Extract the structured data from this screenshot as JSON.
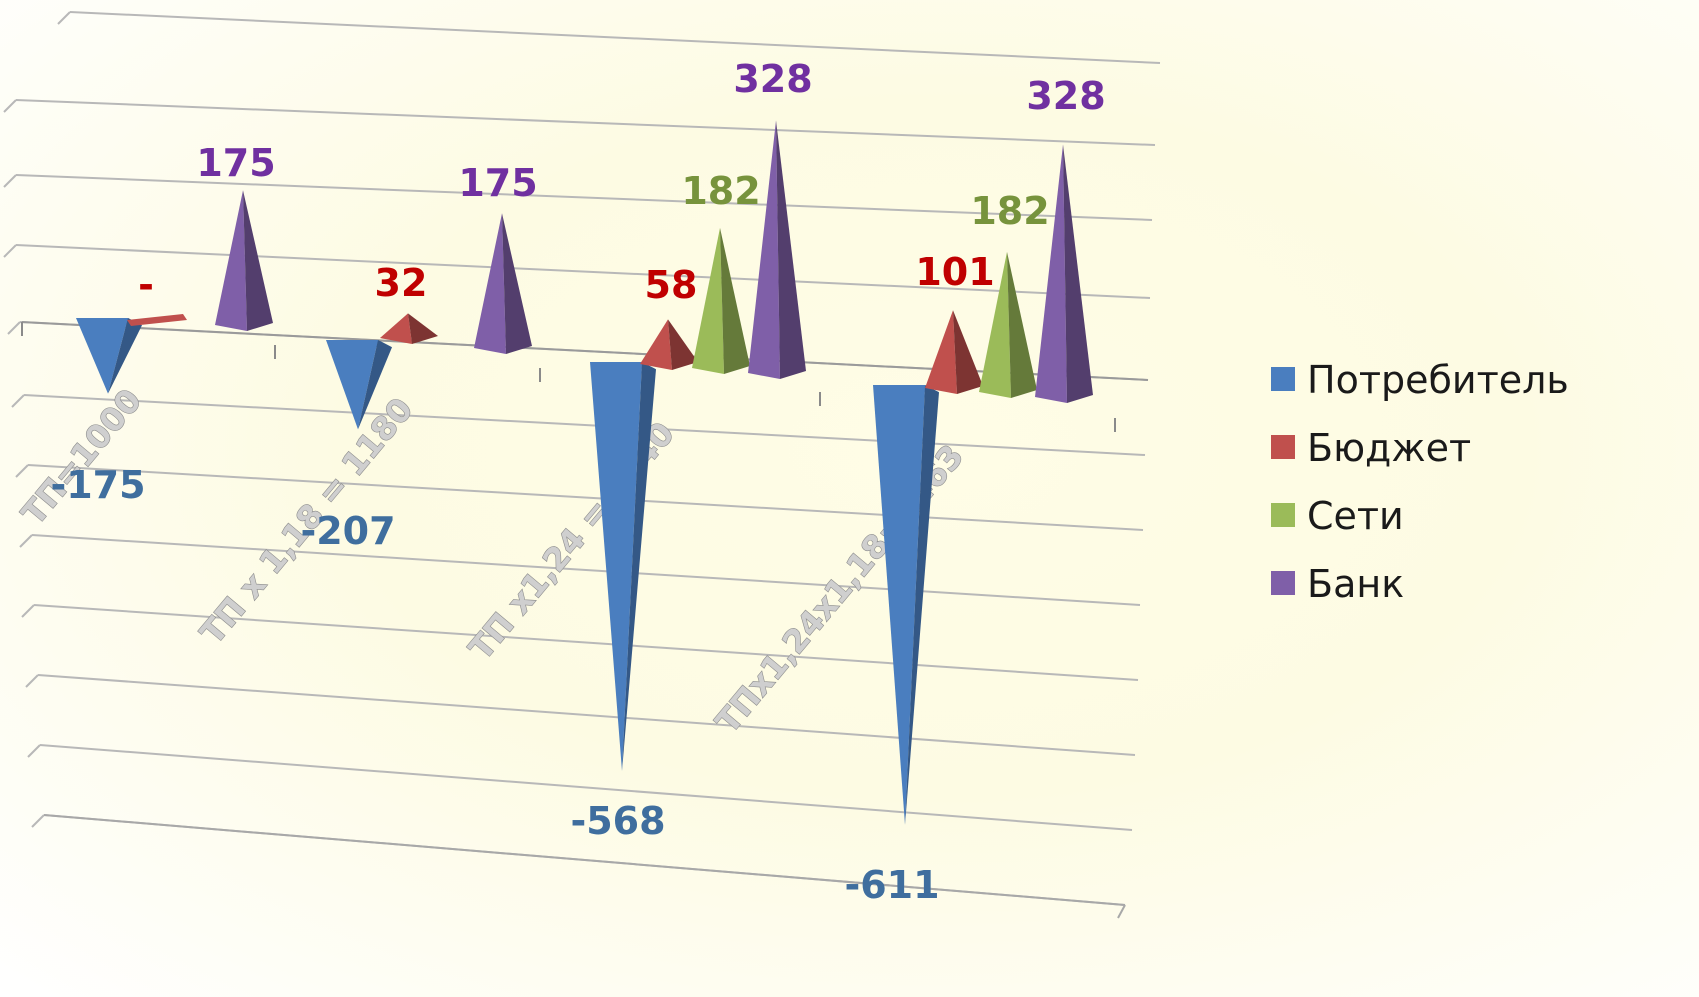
{
  "chart_data": {
    "type": "bar",
    "categories": [
      "ТП=1000",
      "ТП х 1,18 = 1180",
      "ТП х1,24 = 1240",
      "ТПх1,24х1,18=1463"
    ],
    "series": [
      {
        "name": "Потребитель",
        "color": "#4a7ebf",
        "values": [
          -175,
          -207,
          -568,
          -611
        ]
      },
      {
        "name": "Бюджет",
        "color": "#c0504d",
        "values": [
          0,
          32,
          58,
          101
        ]
      },
      {
        "name": "Сети",
        "color": "#9bbb59",
        "values": [
          null,
          null,
          182,
          182
        ]
      },
      {
        "name": "Банк",
        "color": "#7f5fa8",
        "values": [
          175,
          175,
          328,
          328
        ]
      }
    ],
    "data_labels": [
      [
        "-175",
        "-207",
        "-568",
        "-611"
      ],
      [
        "-",
        "32",
        "58",
        "101"
      ],
      [
        "",
        "",
        "182",
        "182"
      ],
      [
        "175",
        "175",
        "328",
        "328"
      ]
    ],
    "label_colors": [
      "#3f6e9e",
      "#c00000",
      "#77933c",
      "#7030a0"
    ],
    "legend_position": "right",
    "grid": true
  }
}
